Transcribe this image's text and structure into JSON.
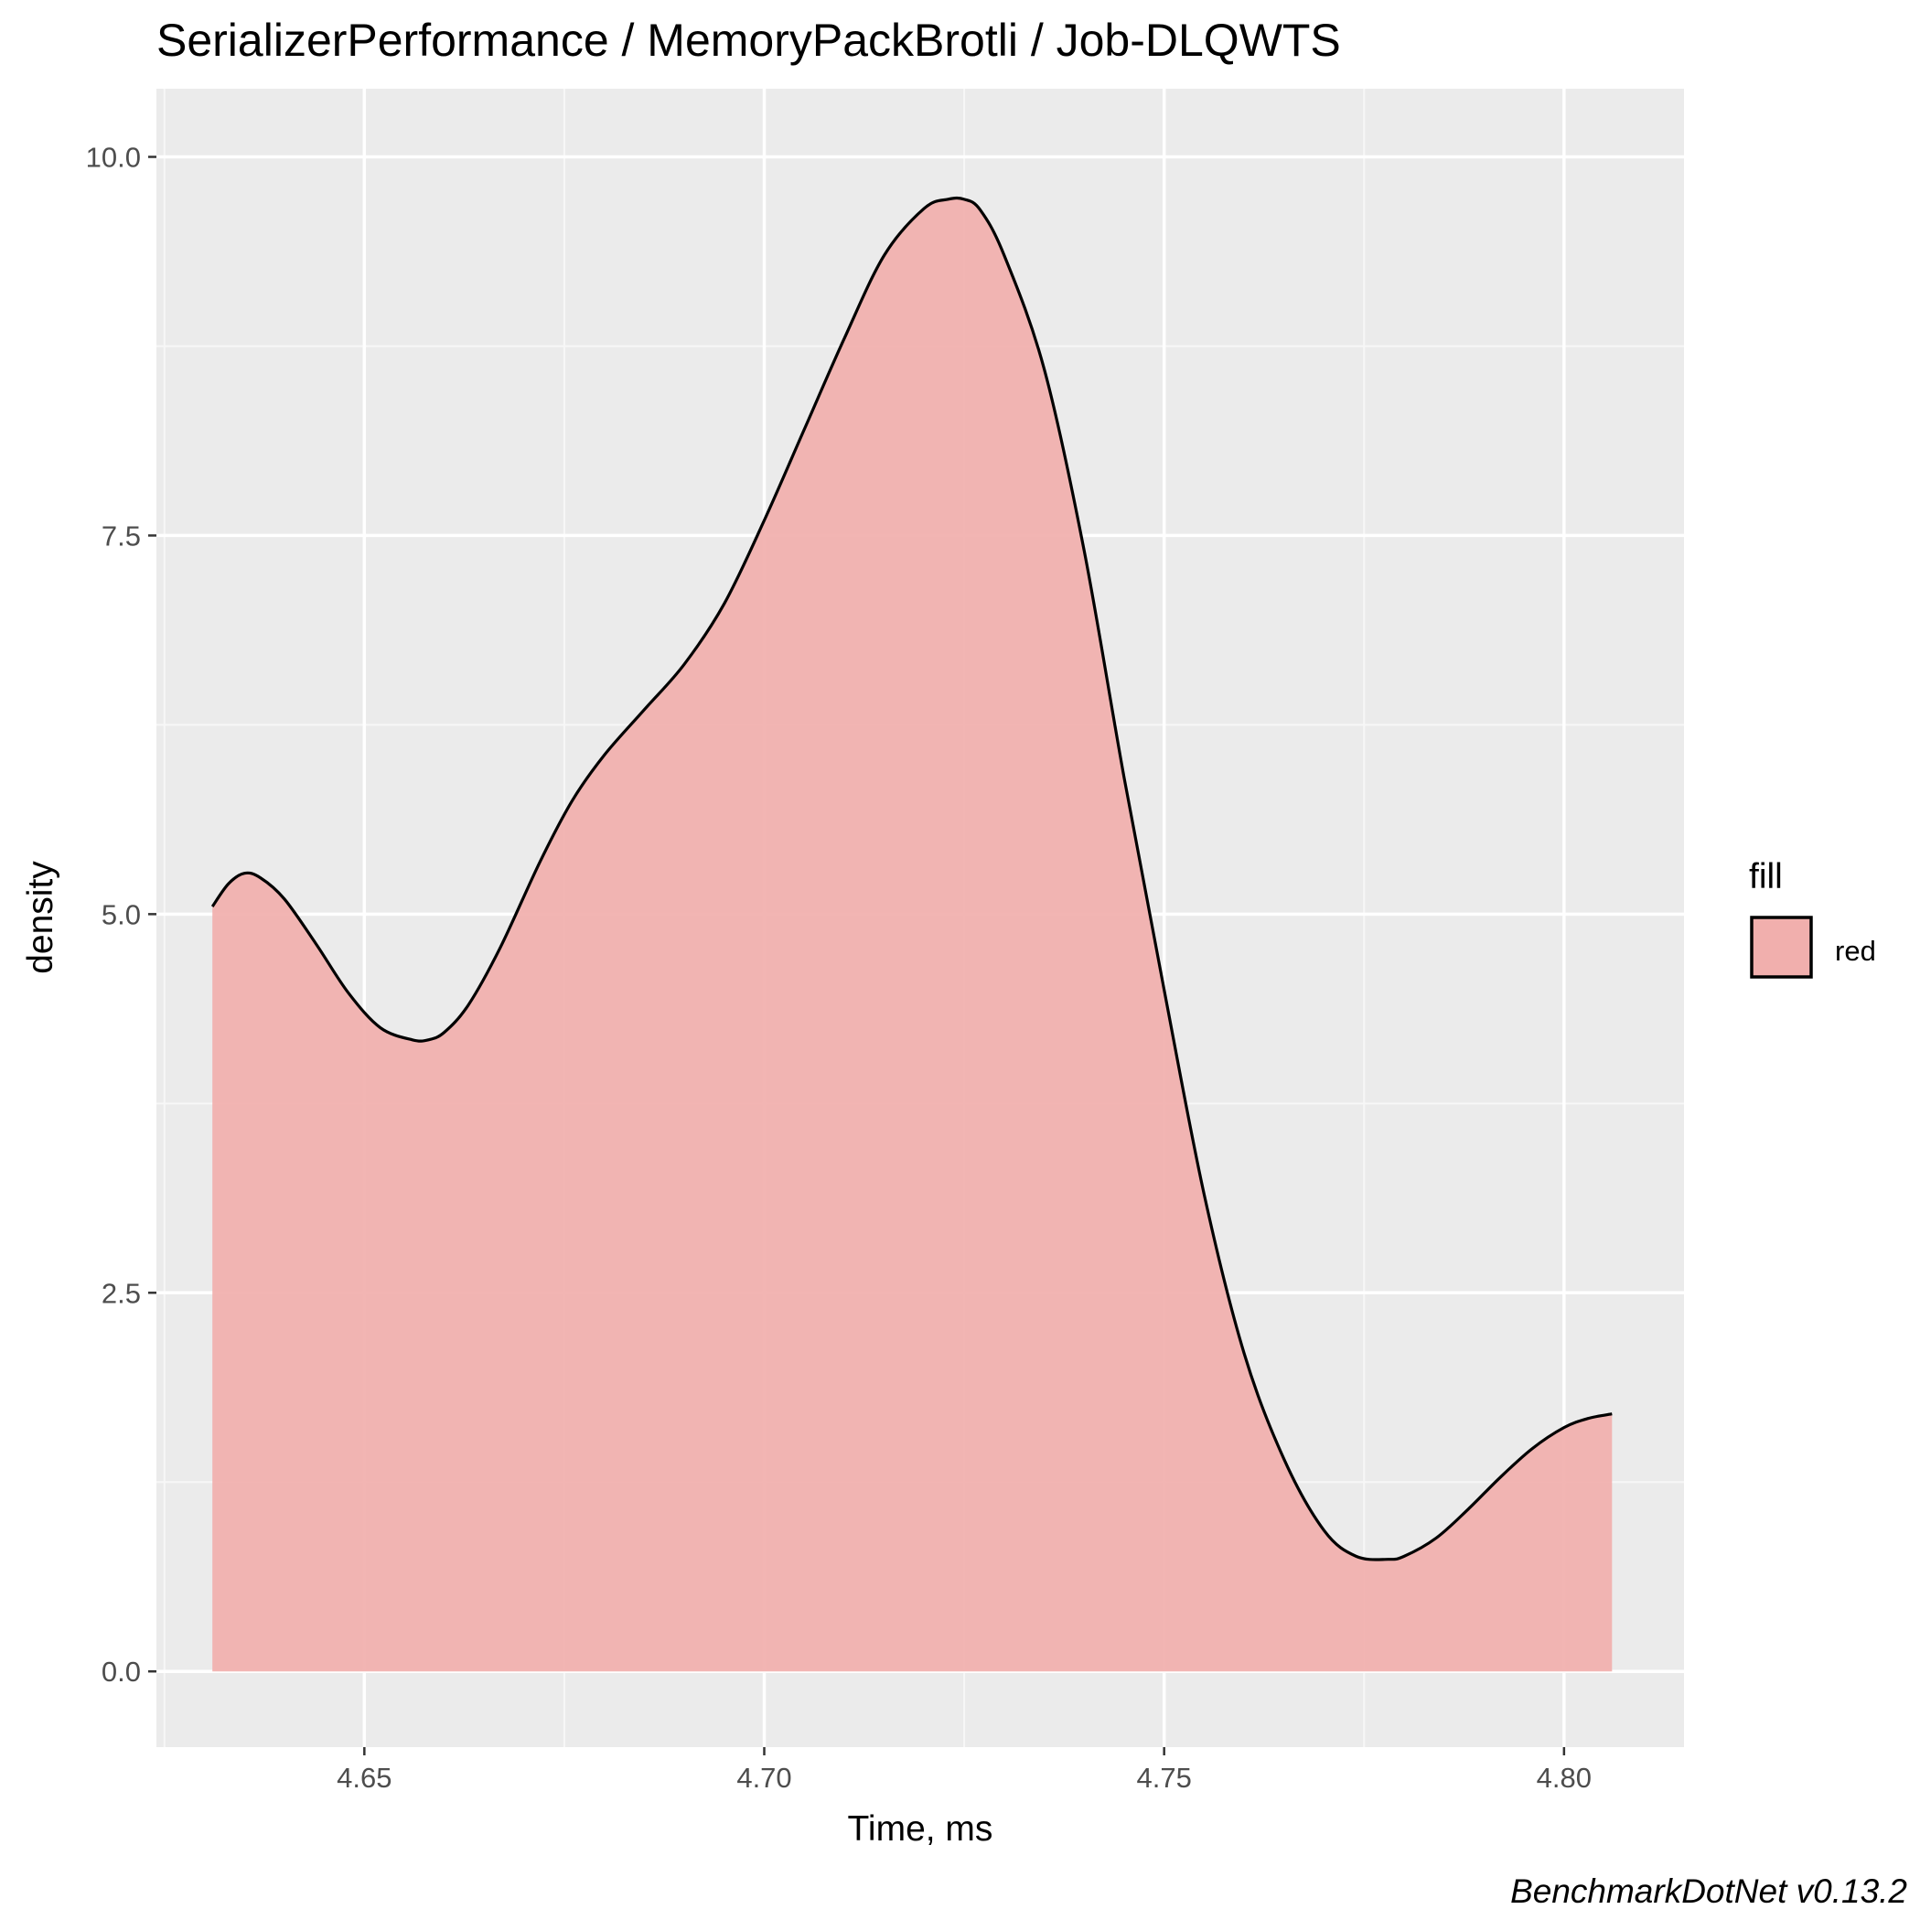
{
  "chart_data": {
    "type": "area",
    "title": "SerializerPerformance / MemoryPackBrotli / Job-DLQWTS",
    "xlabel": "Time, ms",
    "ylabel": "density",
    "xlim": [
      4.624,
      4.815
    ],
    "ylim": [
      -0.5,
      10.45
    ],
    "x_ticks": [
      4.65,
      4.7,
      4.75,
      4.8
    ],
    "x_tick_labels": [
      "4.65",
      "4.70",
      "4.75",
      "4.80"
    ],
    "y_ticks": [
      0.0,
      2.5,
      5.0,
      7.5,
      10.0
    ],
    "y_tick_labels": [
      "0.0",
      "2.5",
      "5.0",
      "7.5",
      "10.0"
    ],
    "grid": true,
    "legend": {
      "title": "fill",
      "position": "right",
      "entries": [
        "red"
      ]
    },
    "series": [
      {
        "name": "red",
        "fill_color": "#F1AFAD",
        "line_color": "#000000",
        "x": [
          4.631,
          4.633,
          4.635,
          4.637,
          4.64,
          4.644,
          4.648,
          4.652,
          4.656,
          4.658,
          4.66,
          4.663,
          4.667,
          4.672,
          4.676,
          4.68,
          4.685,
          4.69,
          4.695,
          4.7,
          4.705,
          4.71,
          4.715,
          4.72,
          4.723,
          4.725,
          4.727,
          4.73,
          4.735,
          4.74,
          4.745,
          4.75,
          4.755,
          4.76,
          4.765,
          4.77,
          4.774,
          4.778,
          4.78,
          4.784,
          4.788,
          4.792,
          4.796,
          4.8,
          4.803,
          4.806
        ],
        "y": [
          5.05,
          5.2,
          5.27,
          5.24,
          5.1,
          4.8,
          4.48,
          4.25,
          4.17,
          4.17,
          4.22,
          4.4,
          4.78,
          5.35,
          5.75,
          6.05,
          6.35,
          6.65,
          7.05,
          7.6,
          8.2,
          8.8,
          9.35,
          9.66,
          9.72,
          9.72,
          9.65,
          9.35,
          8.6,
          7.4,
          5.9,
          4.5,
          3.15,
          2.1,
          1.4,
          0.93,
          0.76,
          0.74,
          0.76,
          0.88,
          1.07,
          1.28,
          1.47,
          1.61,
          1.67,
          1.7
        ]
      }
    ],
    "caption": "BenchmarkDotNet v0.13.2"
  },
  "colors": {
    "panel_background": "#EBEBEB",
    "grid_major": "#FFFFFF",
    "grid_minor": "#F7F7F7",
    "tick_color": "#333333",
    "area_fill": "#F1AFAD"
  }
}
